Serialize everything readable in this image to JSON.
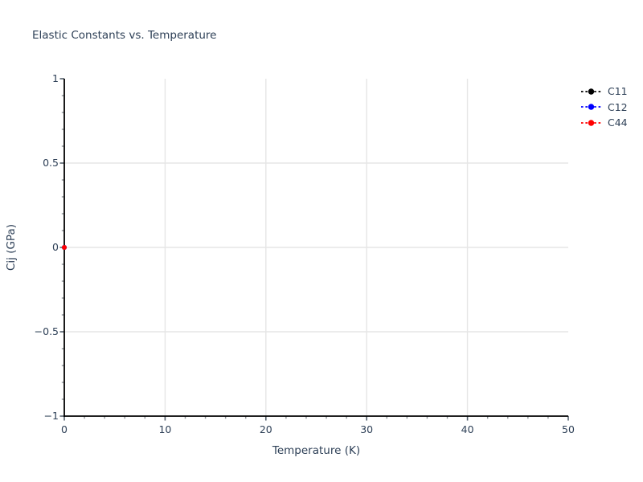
{
  "page": {
    "background": "#ffffff"
  },
  "chart_data": {
    "type": "scatter",
    "title": "Elastic Constants vs. Temperature",
    "xlabel": "Temperature (K)",
    "ylabel": "Cij (GPa)",
    "xlim": [
      0,
      50
    ],
    "ylim": [
      -1,
      1
    ],
    "x_tick_values": [
      0,
      10,
      20,
      30,
      40,
      50
    ],
    "x_tick_labels": [
      "0",
      "10",
      "20",
      "30",
      "40",
      "50"
    ],
    "y_tick_values": [
      -1,
      -0.5,
      0,
      0.5,
      1
    ],
    "y_tick_labels": [
      "−1",
      "−0.5",
      "0",
      "0.5",
      "1"
    ],
    "x_minor_step": 2,
    "y_minor_step": 0.1,
    "x_gridlines": [
      10,
      20,
      30,
      40
    ],
    "y_gridlines": [
      -0.5,
      0,
      0.5
    ],
    "grid": true,
    "legend": {
      "position": "top-right-outside",
      "entries": [
        "C11",
        "C12",
        "C44"
      ]
    },
    "series": [
      {
        "name": "C11",
        "color": "#000000",
        "line_style": "dashed",
        "marker": "circle",
        "x": [
          0
        ],
        "y": [
          0
        ]
      },
      {
        "name": "C12",
        "color": "#0000ff",
        "line_style": "dashed",
        "marker": "circle",
        "x": [
          0
        ],
        "y": [
          0
        ]
      },
      {
        "name": "C44",
        "color": "#ff0000",
        "line_style": "dashed",
        "marker": "circle",
        "x": [
          0
        ],
        "y": [
          0
        ]
      }
    ],
    "colors": {
      "text": "#2e4057",
      "grid": "#e6e6e6",
      "axis": "#000000",
      "major_tick": "#55606c",
      "minor_tick": "#8f9499"
    }
  }
}
